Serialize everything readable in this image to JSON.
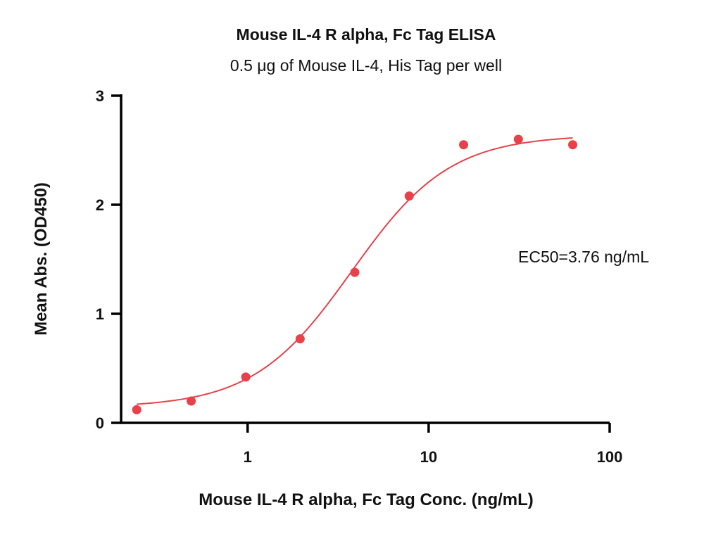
{
  "chart_data": {
    "type": "scatter",
    "title": "Mouse IL-4 R alpha, Fc Tag ELISA",
    "subtitle": "0.5 μg of Mouse IL-4, His Tag per well",
    "xlabel": "Mouse IL-4 R alpha, Fc Tag Conc. (ng/mL)",
    "ylabel": "Mean Abs. (OD450)",
    "x_scale": "log",
    "xlim": [
      0.2,
      100
    ],
    "ylim": [
      0,
      3
    ],
    "x_ticks": [
      {
        "value": 1,
        "label": "1"
      },
      {
        "value": 10,
        "label": "10"
      },
      {
        "value": 100,
        "label": "100"
      }
    ],
    "y_ticks": [
      {
        "value": 0,
        "label": "0"
      },
      {
        "value": 1,
        "label": "1"
      },
      {
        "value": 2,
        "label": "2"
      },
      {
        "value": 3,
        "label": "3"
      }
    ],
    "series": [
      {
        "x": [
          0.244,
          0.488,
          0.977,
          1.95,
          3.91,
          7.81,
          15.6,
          31.3,
          62.5
        ],
        "y": [
          0.12,
          0.2,
          0.42,
          0.77,
          1.38,
          2.08,
          2.55,
          2.6,
          2.55
        ],
        "color": "#e8414a"
      }
    ],
    "fit_curve": {
      "model": "4PL",
      "bottom": 0.14,
      "top": 2.64,
      "ec50": 3.76,
      "hill": 1.6,
      "color": "#e8414a"
    },
    "annotation": "EC50=3.76 ng/mL",
    "grid": false,
    "legend": "none"
  }
}
